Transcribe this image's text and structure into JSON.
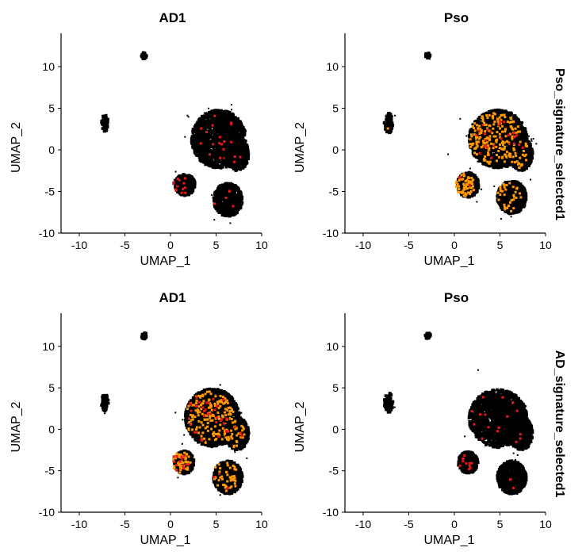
{
  "chart_data": [
    {
      "type": "scatter",
      "title": "AD1",
      "row_strip": "Pso_signature_selected1",
      "xlabel": "UMAP_1",
      "ylabel": "UMAP_2",
      "xlim": [
        -12,
        10
      ],
      "ylim": [
        -10,
        14
      ],
      "xticks": [
        -10,
        -5,
        0,
        5,
        10
      ],
      "yticks": [
        -10,
        -5,
        0,
        5,
        10
      ],
      "colors": {
        "base": "#000000",
        "mid": "#ff9900",
        "high": "#e8191b"
      },
      "clusters": [
        {
          "cx": 5.3,
          "cy": 1.3,
          "rx": 3.0,
          "ry": 3.5,
          "n": 420,
          "orange": 0.0,
          "red": 0.04
        },
        {
          "cx": 7.3,
          "cy": -0.5,
          "rx": 1.3,
          "ry": 2.0,
          "n": 130,
          "orange": 0.0,
          "red": 0.03
        },
        {
          "cx": 1.6,
          "cy": -4.2,
          "rx": 1.1,
          "ry": 1.3,
          "n": 110,
          "orange": 0.0,
          "red": 0.12
        },
        {
          "cx": 6.3,
          "cy": -6.0,
          "rx": 1.6,
          "ry": 2.0,
          "n": 170,
          "orange": 0.0,
          "red": 0.03
        },
        {
          "cx": -7.2,
          "cy": 3.2,
          "rx": 0.4,
          "ry": 1.0,
          "n": 16,
          "orange": 0.0,
          "red": 0.0
        },
        {
          "cx": -2.9,
          "cy": 11.3,
          "rx": 0.3,
          "ry": 0.4,
          "n": 8,
          "orange": 0.0,
          "red": 0.0
        }
      ]
    },
    {
      "type": "scatter",
      "title": "Pso",
      "row_strip": "Pso_signature_selected1",
      "xlabel": "UMAP_1",
      "ylabel": "UMAP_2",
      "xlim": [
        -12,
        10
      ],
      "ylim": [
        -10,
        14
      ],
      "xticks": [
        -10,
        -5,
        0,
        5,
        10
      ],
      "yticks": [
        -10,
        -5,
        0,
        5,
        10
      ],
      "colors": {
        "base": "#000000",
        "mid": "#ff9900",
        "high": "#e8191b"
      },
      "clusters": [
        {
          "cx": 4.8,
          "cy": 1.3,
          "rx": 3.2,
          "ry": 3.5,
          "n": 420,
          "orange": 0.45,
          "red": 0.06
        },
        {
          "cx": 7.3,
          "cy": -0.5,
          "rx": 1.3,
          "ry": 2.0,
          "n": 130,
          "orange": 0.25,
          "red": 0.02
        },
        {
          "cx": 1.5,
          "cy": -4.2,
          "rx": 1.2,
          "ry": 1.5,
          "n": 110,
          "orange": 0.55,
          "red": 0.02
        },
        {
          "cx": 6.3,
          "cy": -5.7,
          "rx": 1.6,
          "ry": 2.0,
          "n": 170,
          "orange": 0.2,
          "red": 0.0
        },
        {
          "cx": -7.2,
          "cy": 3.2,
          "rx": 0.5,
          "ry": 1.2,
          "n": 16,
          "orange": 0.08,
          "red": 0.0
        },
        {
          "cx": -2.9,
          "cy": 11.3,
          "rx": 0.3,
          "ry": 0.4,
          "n": 8,
          "orange": 0.0,
          "red": 0.0
        }
      ]
    },
    {
      "type": "scatter",
      "title": "AD1",
      "row_strip": "AD_signature_selected1",
      "xlabel": "UMAP_1",
      "ylabel": "UMAP_2",
      "xlim": [
        -12,
        10
      ],
      "ylim": [
        -10,
        14
      ],
      "xticks": [
        -10,
        -5,
        0,
        5,
        10
      ],
      "yticks": [
        -10,
        -5,
        0,
        5,
        10
      ],
      "colors": {
        "base": "#000000",
        "mid": "#ff9900",
        "high": "#e8191b"
      },
      "clusters": [
        {
          "cx": 4.6,
          "cy": 1.4,
          "rx": 3.0,
          "ry": 3.5,
          "n": 420,
          "orange": 0.38,
          "red": 0.08
        },
        {
          "cx": 7.3,
          "cy": -0.5,
          "rx": 1.3,
          "ry": 2.0,
          "n": 130,
          "orange": 0.3,
          "red": 0.04
        },
        {
          "cx": 1.5,
          "cy": -4.0,
          "rx": 1.1,
          "ry": 1.4,
          "n": 110,
          "orange": 0.5,
          "red": 0.12
        },
        {
          "cx": 6.3,
          "cy": -5.8,
          "rx": 1.6,
          "ry": 2.0,
          "n": 170,
          "orange": 0.25,
          "red": 0.02
        },
        {
          "cx": -7.2,
          "cy": 3.2,
          "rx": 0.4,
          "ry": 1.0,
          "n": 16,
          "orange": 0.0,
          "red": 0.0
        },
        {
          "cx": -2.9,
          "cy": 11.3,
          "rx": 0.3,
          "ry": 0.4,
          "n": 8,
          "orange": 0.0,
          "red": 0.0
        }
      ]
    },
    {
      "type": "scatter",
      "title": "Pso",
      "row_strip": "AD_signature_selected1",
      "xlabel": "UMAP_1",
      "ylabel": "UMAP_2",
      "xlim": [
        -12,
        10
      ],
      "ylim": [
        -10,
        14
      ],
      "xticks": [
        -10,
        -5,
        0,
        5,
        10
      ],
      "yticks": [
        -10,
        -5,
        0,
        5,
        10
      ],
      "colors": {
        "base": "#000000",
        "mid": "#ff9900",
        "high": "#e8191b"
      },
      "clusters": [
        {
          "cx": 4.8,
          "cy": 1.3,
          "rx": 3.2,
          "ry": 3.5,
          "n": 420,
          "orange": 0.0,
          "red": 0.03
        },
        {
          "cx": 7.3,
          "cy": -0.5,
          "rx": 1.3,
          "ry": 2.0,
          "n": 130,
          "orange": 0.0,
          "red": 0.02
        },
        {
          "cx": 1.5,
          "cy": -4.0,
          "rx": 1.1,
          "ry": 1.3,
          "n": 110,
          "orange": 0.0,
          "red": 0.1
        },
        {
          "cx": 6.3,
          "cy": -5.8,
          "rx": 1.6,
          "ry": 2.0,
          "n": 170,
          "orange": 0.0,
          "red": 0.01
        },
        {
          "cx": -7.2,
          "cy": 3.2,
          "rx": 0.5,
          "ry": 1.2,
          "n": 16,
          "orange": 0.0,
          "red": 0.0
        },
        {
          "cx": -2.9,
          "cy": 11.3,
          "rx": 0.3,
          "ry": 0.4,
          "n": 8,
          "orange": 0.0,
          "red": 0.0
        }
      ]
    }
  ]
}
